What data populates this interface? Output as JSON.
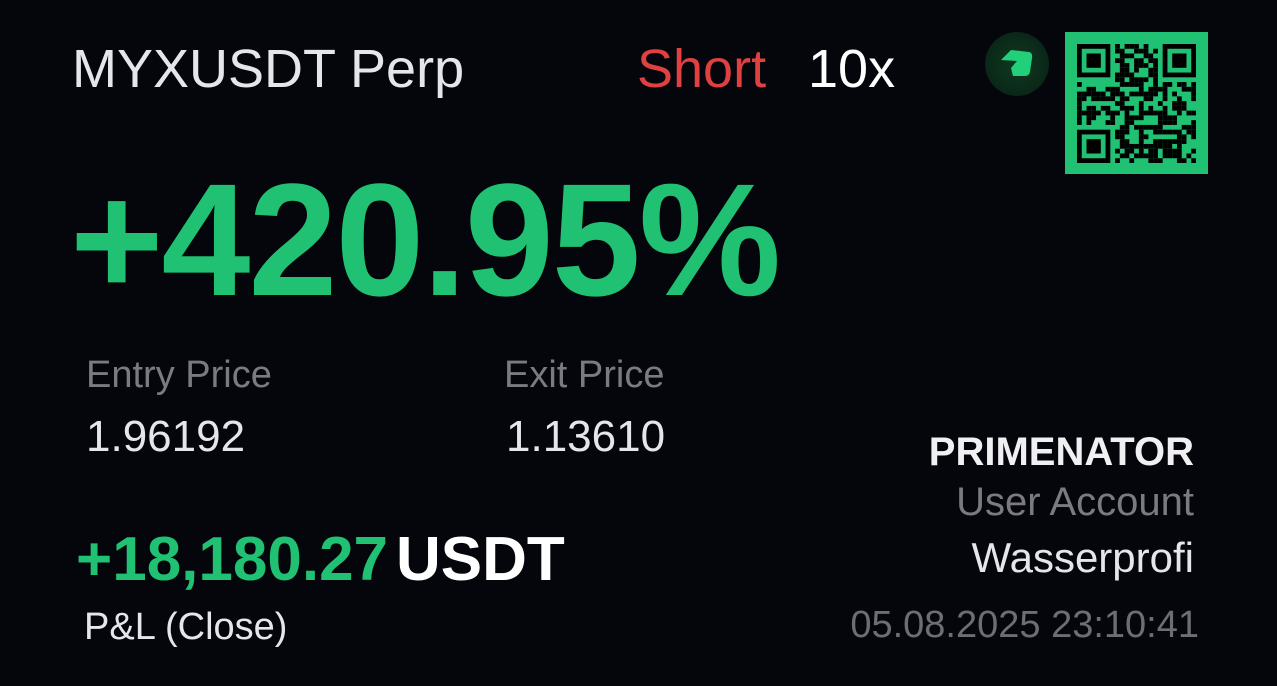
{
  "position": {
    "pair": "MYXUSDT Perp",
    "side": "Short",
    "leverage": "10x"
  },
  "roi": "+420.95%",
  "entry": {
    "label": "Entry Price",
    "value": "1.96192"
  },
  "exit": {
    "label": "Exit Price",
    "value": "1.13610"
  },
  "pnl": {
    "value": "+18,180.27",
    "unit": "USDT",
    "label": "P&L (Close)"
  },
  "account": {
    "brand": "PRIMENATOR",
    "label": "User Account",
    "name": "Wasserprofi",
    "timestamp": "05.08.2025 23:10:41"
  },
  "icons": {
    "logo": "exchange-logo-icon",
    "qr": "qr-code-icon"
  },
  "colors": {
    "background": "#04060c",
    "profit": "#20c173",
    "short": "#e04040"
  }
}
